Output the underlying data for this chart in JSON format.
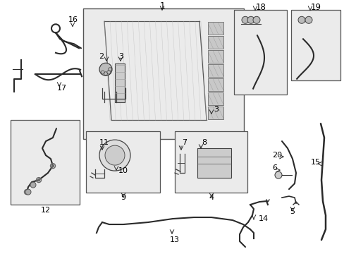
{
  "bg_color": "#ffffff",
  "line_color": "#2a2a2a",
  "fill_light": "#e8e8e8",
  "fill_mid": "#d0d0d0",
  "fig_width": 4.89,
  "fig_height": 3.6,
  "dpi": 100
}
